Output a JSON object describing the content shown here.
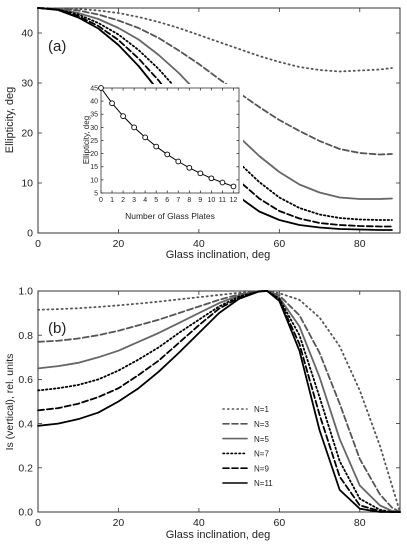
{
  "chart_data": [
    {
      "type": "line",
      "panel_label": "(a)",
      "xlabel": "Glass inclination, deg",
      "ylabel": "Ellipticity, deg",
      "xlim": [
        0,
        90
      ],
      "ylim": [
        0,
        45
      ],
      "x_ticks": [
        0,
        20,
        40,
        60,
        80
      ],
      "y_ticks": [
        0,
        10,
        20,
        30,
        40
      ],
      "grid": false,
      "legend": "none",
      "x": [
        0,
        5,
        10,
        15,
        20,
        25,
        30,
        35,
        40,
        45,
        50,
        55,
        60,
        65,
        70,
        75,
        80,
        85,
        88
      ],
      "series": [
        {
          "values": [
            45,
            44.9,
            44.8,
            44.5,
            44.0,
            43.2,
            42.2,
            41.0,
            39.6,
            38.2,
            36.8,
            35.4,
            34.2,
            33.2,
            32.6,
            32.3,
            32.5,
            32.7,
            33
          ],
          "style": "dotted-sparse",
          "color": "#555555"
        },
        {
          "values": [
            45,
            44.9,
            44.5,
            43.7,
            42.5,
            41.0,
            39.0,
            36.5,
            33.8,
            30.8,
            28.0,
            25.2,
            22.6,
            20.4,
            18.4,
            16.8,
            16.0,
            15.7,
            15.8
          ],
          "style": "dashed",
          "color": "#555555"
        },
        {
          "values": [
            45,
            44.8,
            44.0,
            42.8,
            41.0,
            38.7,
            35.6,
            32.0,
            27.8,
            23.4,
            19.2,
            15.4,
            12.2,
            9.7,
            8.1,
            7.1,
            6.8,
            6.8,
            6.9
          ],
          "style": "solid",
          "color": "#666666"
        },
        {
          "values": [
            45,
            44.7,
            43.7,
            42.0,
            39.7,
            36.6,
            32.8,
            28.3,
            23.5,
            18.6,
            14.0,
            10.2,
            7.1,
            5.0,
            3.7,
            3.0,
            2.7,
            2.6,
            2.6
          ],
          "style": "dotted",
          "color": "#000000"
        },
        {
          "values": [
            45,
            44.7,
            43.4,
            41.4,
            38.6,
            34.9,
            30.5,
            25.3,
            19.9,
            14.8,
            10.4,
            6.9,
            4.4,
            2.9,
            2.0,
            1.6,
            1.4,
            1.3,
            1.3
          ],
          "style": "dashed",
          "color": "#000000"
        },
        {
          "values": [
            45,
            44.6,
            43.1,
            40.9,
            37.6,
            33.4,
            28.4,
            22.7,
            16.8,
            11.5,
            7.2,
            4.3,
            2.6,
            1.6,
            1.1,
            0.8,
            0.7,
            0.6,
            0.6
          ],
          "style": "solid",
          "color": "#000000"
        }
      ],
      "inset": {
        "type": "line",
        "xlabel": "Number of Glass Plates",
        "ylabel": "Ellipticity, deg",
        "xlim": [
          0,
          12.5
        ],
        "ylim": [
          5,
          45
        ],
        "x_ticks": [
          0,
          1,
          2,
          3,
          4,
          5,
          6,
          7,
          8,
          9,
          10,
          11,
          12
        ],
        "y_ticks": [
          5,
          10,
          15,
          20,
          25,
          30,
          35,
          40,
          45
        ],
        "x": [
          0,
          1,
          2,
          3,
          4,
          5,
          6,
          7,
          8,
          9,
          10,
          11,
          12
        ],
        "values": [
          45,
          39.2,
          34.3,
          30.0,
          26.2,
          22.7,
          19.7,
          17.0,
          14.6,
          12.5,
          10.6,
          9.0,
          7.5
        ],
        "marker": "open-circle"
      }
    },
    {
      "type": "line",
      "panel_label": "(b)",
      "xlabel": "Glass inclination, deg",
      "ylabel": "Is (vertical), rel. units",
      "xlim": [
        0,
        90
      ],
      "ylim": [
        0,
        1.0
      ],
      "x_ticks": [
        0,
        20,
        40,
        60,
        80
      ],
      "y_ticks": [
        0.0,
        0.2,
        0.4,
        0.6,
        0.8,
        1.0
      ],
      "grid": false,
      "legend": "middle-right",
      "x": [
        0,
        5,
        10,
        15,
        20,
        25,
        30,
        35,
        40,
        45,
        50,
        55,
        57,
        60,
        65,
        70,
        75,
        80,
        85,
        88,
        90
      ],
      "series": [
        {
          "name": "N=1",
          "values": [
            0.915,
            0.918,
            0.922,
            0.928,
            0.935,
            0.943,
            0.952,
            0.962,
            0.972,
            0.982,
            0.992,
            0.999,
            1.0,
            0.99,
            0.96,
            0.88,
            0.75,
            0.55,
            0.3,
            0.12,
            0.0
          ],
          "style": "dotted-sparse",
          "color": "#555555"
        },
        {
          "name": "N=3",
          "values": [
            0.77,
            0.775,
            0.785,
            0.8,
            0.82,
            0.845,
            0.87,
            0.9,
            0.93,
            0.96,
            0.985,
            0.999,
            1.0,
            0.98,
            0.89,
            0.72,
            0.49,
            0.24,
            0.08,
            0.02,
            0.0
          ],
          "style": "dashed",
          "color": "#555555"
        },
        {
          "name": "N=5",
          "values": [
            0.65,
            0.66,
            0.675,
            0.7,
            0.73,
            0.77,
            0.81,
            0.855,
            0.9,
            0.945,
            0.98,
            0.999,
            1.0,
            0.97,
            0.84,
            0.61,
            0.33,
            0.12,
            0.03,
            0.005,
            0.0
          ],
          "style": "solid",
          "color": "#666666"
        },
        {
          "name": "N=7",
          "values": [
            0.55,
            0.56,
            0.575,
            0.6,
            0.64,
            0.69,
            0.745,
            0.81,
            0.87,
            0.93,
            0.975,
            0.999,
            1.0,
            0.965,
            0.8,
            0.52,
            0.23,
            0.06,
            0.01,
            0.0,
            0.0
          ],
          "style": "dotted",
          "color": "#000000"
        },
        {
          "name": "N=9",
          "values": [
            0.46,
            0.47,
            0.49,
            0.52,
            0.56,
            0.62,
            0.685,
            0.765,
            0.845,
            0.92,
            0.97,
            0.998,
            1.0,
            0.96,
            0.76,
            0.44,
            0.16,
            0.03,
            0.004,
            0.0,
            0.0
          ],
          "style": "dashed",
          "color": "#000000"
        },
        {
          "name": "N=11",
          "values": [
            0.39,
            0.4,
            0.42,
            0.45,
            0.5,
            0.56,
            0.635,
            0.72,
            0.81,
            0.9,
            0.965,
            0.998,
            1.0,
            0.955,
            0.73,
            0.37,
            0.1,
            0.015,
            0.0,
            0.0,
            0.0
          ],
          "style": "solid",
          "color": "#000000"
        }
      ]
    }
  ]
}
